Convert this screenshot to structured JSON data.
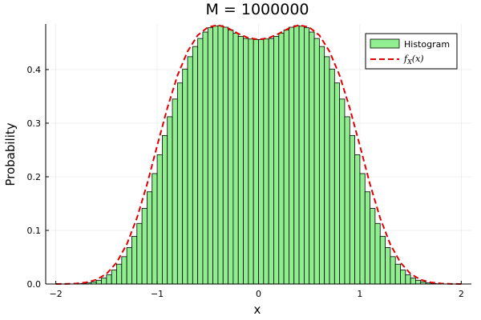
{
  "chart_data": {
    "type": "bar",
    "title": "M = 1000000",
    "xlabel": "x",
    "ylabel": "Probability",
    "xlim": [
      -2.1,
      2.1
    ],
    "ylim": [
      0,
      0.485
    ],
    "xticks": [
      -2,
      -1,
      0,
      1,
      2
    ],
    "yticks": [
      0.0,
      0.1,
      0.2,
      0.3,
      0.4
    ],
    "ytick_labels": [
      "0.0",
      "0.1",
      "0.2",
      "0.3",
      "0.4"
    ],
    "grid": true,
    "legend_position": "top-right",
    "bin_width": 0.05,
    "bins_start": [
      -1.8,
      -1.75,
      -1.7,
      -1.65,
      -1.6,
      -1.55,
      -1.5,
      -1.45,
      -1.4,
      -1.35,
      -1.3,
      -1.25,
      -1.2,
      -1.15,
      -1.1,
      -1.05,
      -1.0,
      -0.95,
      -0.9,
      -0.85,
      -0.8,
      -0.75,
      -0.7,
      -0.65,
      -0.6,
      -0.55,
      -0.5,
      -0.45,
      -0.4,
      -0.35,
      -0.3,
      -0.25,
      -0.2,
      -0.15,
      -0.1,
      -0.05,
      0.0,
      0.05,
      0.1,
      0.15,
      0.2,
      0.25,
      0.3,
      0.35,
      0.4,
      0.45,
      0.5,
      0.55,
      0.6,
      0.65,
      0.7,
      0.75,
      0.8,
      0.85,
      0.9,
      0.95,
      1.0,
      1.05,
      1.1,
      1.15,
      1.2,
      1.25,
      1.3,
      1.35,
      1.4,
      1.45,
      1.5,
      1.55,
      1.6,
      1.65,
      1.7,
      1.75
    ],
    "series": [
      {
        "name": "Histogram",
        "type": "histogram",
        "color": "#90ee90",
        "edge_color": "#000000",
        "values": [
          0.0005,
          0.001,
          0.002,
          0.004,
          0.007,
          0.011,
          0.017,
          0.026,
          0.037,
          0.051,
          0.068,
          0.089,
          0.113,
          0.141,
          0.172,
          0.206,
          0.241,
          0.277,
          0.312,
          0.345,
          0.375,
          0.401,
          0.424,
          0.443,
          0.458,
          0.47,
          0.478,
          0.481,
          0.482,
          0.479,
          0.474,
          0.468,
          0.462,
          0.458,
          0.457,
          0.456,
          0.456,
          0.457,
          0.458,
          0.462,
          0.468,
          0.474,
          0.479,
          0.482,
          0.481,
          0.478,
          0.47,
          0.458,
          0.443,
          0.424,
          0.401,
          0.375,
          0.345,
          0.312,
          0.277,
          0.241,
          0.206,
          0.172,
          0.141,
          0.113,
          0.089,
          0.068,
          0.051,
          0.037,
          0.026,
          0.017,
          0.011,
          0.007,
          0.004,
          0.002,
          0.001,
          0.0005
        ]
      },
      {
        "name": "f_X(x)",
        "type": "line",
        "color": "#e00000",
        "style": "dashed",
        "x": [
          -2.0,
          -1.9,
          -1.8,
          -1.7,
          -1.6,
          -1.5,
          -1.4,
          -1.3,
          -1.2,
          -1.1,
          -1.0,
          -0.9,
          -0.8,
          -0.7,
          -0.6,
          -0.5,
          -0.4,
          -0.3,
          -0.2,
          -0.1,
          0.0,
          0.1,
          0.2,
          0.3,
          0.4,
          0.5,
          0.6,
          0.7,
          0.8,
          0.9,
          1.0,
          1.1,
          1.2,
          1.3,
          1.4,
          1.5,
          1.6,
          1.7,
          1.8,
          1.9,
          2.0
        ],
        "y": [
          0.0,
          0.0002,
          0.001,
          0.003,
          0.008,
          0.019,
          0.04,
          0.074,
          0.123,
          0.186,
          0.258,
          0.328,
          0.389,
          0.434,
          0.464,
          0.479,
          0.483,
          0.477,
          0.467,
          0.459,
          0.456,
          0.459,
          0.467,
          0.477,
          0.483,
          0.479,
          0.464,
          0.434,
          0.389,
          0.328,
          0.258,
          0.186,
          0.123,
          0.074,
          0.04,
          0.019,
          0.008,
          0.003,
          0.001,
          0.0002,
          0.0
        ]
      }
    ],
    "legend": {
      "histogram_label": "Histogram",
      "density_label_main": "f",
      "density_label_sub": "X",
      "density_label_arg": "(x)"
    }
  }
}
